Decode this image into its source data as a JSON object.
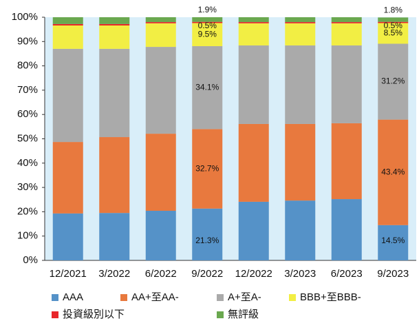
{
  "chart_data": {
    "type": "stacked-bar",
    "categories": [
      "12/2021",
      "3/2022",
      "6/2022",
      "9/2022",
      "12/2022",
      "3/2023",
      "6/2023",
      "9/2023"
    ],
    "series": [
      {
        "name": "AAA",
        "color": "#5592c8",
        "values": [
          19.3,
          19.5,
          20.4,
          21.3,
          24.1,
          24.6,
          25.2,
          14.5
        ],
        "value_labels": [
          null,
          null,
          null,
          "21.3%",
          null,
          null,
          null,
          "14.5%"
        ]
      },
      {
        "name": "AA+至AA-",
        "color": "#e8793e",
        "values": [
          29.4,
          31.2,
          31.7,
          32.7,
          32.0,
          31.5,
          31.2,
          43.4
        ],
        "value_labels": [
          null,
          null,
          null,
          "32.7%",
          null,
          null,
          null,
          "43.4%"
        ]
      },
      {
        "name": "A+至A-",
        "color": "#aaaaaa",
        "values": [
          38.3,
          36.3,
          35.7,
          34.1,
          32.3,
          32.3,
          32.0,
          31.2
        ],
        "value_labels": [
          null,
          null,
          null,
          "34.1%",
          null,
          null,
          null,
          "31.2%"
        ]
      },
      {
        "name": "BBB+至BBB-",
        "color": "#f2ee44",
        "values": [
          9.6,
          9.6,
          9.7,
          9.5,
          9.1,
          9.1,
          9.1,
          8.5
        ],
        "value_labels": [
          null,
          null,
          null,
          "9.5%",
          null,
          null,
          null,
          "8.5%"
        ]
      },
      {
        "name": "投資級別以下",
        "color": "#e8262a",
        "values": [
          0.6,
          0.6,
          0.5,
          0.5,
          0.5,
          0.5,
          0.5,
          0.5
        ],
        "value_labels": [
          null,
          null,
          null,
          "0.5%",
          null,
          null,
          null,
          "0.5%"
        ]
      },
      {
        "name": "無評級",
        "color": "#6aa84f",
        "values": [
          2.8,
          2.8,
          2.0,
          1.9,
          2.0,
          2.0,
          2.0,
          1.8
        ],
        "value_labels": [
          null,
          null,
          null,
          "1.9%",
          null,
          null,
          null,
          "1.8%"
        ]
      }
    ],
    "ylim": [
      0,
      100
    ],
    "yticks": [
      {
        "value": 0,
        "label": "0%"
      },
      {
        "value": 10,
        "label": "10%"
      },
      {
        "value": 20,
        "label": "20%"
      },
      {
        "value": 30,
        "label": "30%"
      },
      {
        "value": 40,
        "label": "40%"
      },
      {
        "value": 50,
        "label": "50%"
      },
      {
        "value": 60,
        "label": "60%"
      },
      {
        "value": 70,
        "label": "70%"
      },
      {
        "value": 80,
        "label": "80%"
      },
      {
        "value": 90,
        "label": "90%"
      },
      {
        "value": 100,
        "label": "100%"
      }
    ],
    "plot_background": "#d9eef9"
  }
}
